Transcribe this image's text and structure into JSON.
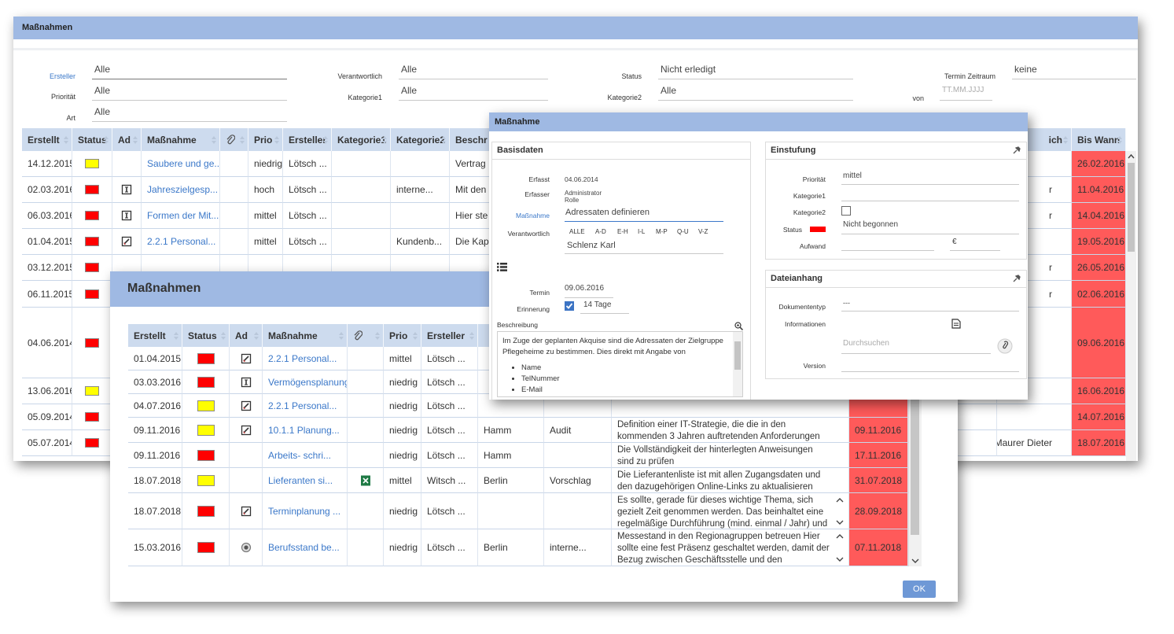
{
  "list_window": {
    "title": "Maßnahmen",
    "filters": [
      {
        "label": "Ersteller",
        "value": "Alle"
      },
      {
        "label": "Priorität",
        "value": "Alle"
      },
      {
        "label": "Art",
        "value": "Alle"
      },
      {
        "label": "Verantwortlich",
        "value": "Alle"
      },
      {
        "label": "Kategorie1",
        "value": "Alle"
      },
      {
        "label": "Status",
        "value": "Nicht erledigt"
      },
      {
        "label": "Kategorie2",
        "value": "Alle"
      },
      {
        "label": "Termin Zeitraum",
        "value": "keine"
      },
      {
        "label": "von",
        "placeholder": "TT.MM.JJJJ"
      }
    ],
    "table": {
      "columns": [
        "Erstellt",
        "Status",
        "Ad",
        "Maßnahme",
        null,
        "Prio",
        "Ersteller",
        "Kategorie1",
        "Kategorie2",
        "Beschr",
        "ich",
        "Bis Wann"
      ],
      "rows": [
        [
          "14.12.2015",
          "#ffff00",
          null,
          "Saubere und ge...",
          null,
          "niedrig",
          "Lötsch ...",
          null,
          null,
          "Vertrag",
          null,
          "26.02.2016"
        ],
        [
          "02.03.2016",
          "#ff0000",
          "info",
          "Jahreszielgesp...",
          null,
          "hoch",
          "Lötsch ...",
          null,
          "interne...",
          "Mit den",
          "r",
          "11.04.2016"
        ],
        [
          "06.03.2016",
          "#ff0000",
          "info",
          "Formen der Mit...",
          null,
          "mittel",
          "Lötsch ...",
          null,
          null,
          "Hier ste",
          "r",
          "14.04.2016"
        ],
        [
          "01.04.2015",
          "#ff0000",
          "edit",
          "2.2.1 Personal...",
          null,
          "mittel",
          "Lötsch ...",
          null,
          "Kundenb...",
          "Die Kap",
          null,
          "19.05.2016"
        ],
        [
          "03.12.2015",
          "#ff0000",
          null,
          null,
          null,
          null,
          null,
          null,
          null,
          null,
          "r",
          "26.05.2016"
        ],
        [
          "06.11.2015",
          "#ff0000",
          null,
          null,
          null,
          null,
          null,
          null,
          null,
          null,
          "r",
          "02.06.2016"
        ],
        [
          "04.06.2014",
          "#ff0000",
          null,
          null,
          null,
          null,
          null,
          null,
          null,
          null,
          null,
          "09.06.2016"
        ],
        [
          "13.06.2016",
          "#ffff00",
          null,
          null,
          null,
          null,
          null,
          null,
          null,
          null,
          null,
          "16.06.2016"
        ],
        [
          "05.09.2014",
          "#ff0000",
          null,
          null,
          null,
          null,
          null,
          null,
          null,
          null,
          null,
          "14.07.2016"
        ],
        [
          "05.07.2014",
          "#ff0000",
          null,
          null,
          null,
          null,
          null,
          null,
          null,
          null,
          "Maurer Dieter",
          "18.07.2016"
        ]
      ]
    }
  },
  "overview_window": {
    "title": "Maßnahmen",
    "table": {
      "columns": [
        "Erstellt",
        "Status",
        "Ad",
        "Maßnahme",
        null,
        "Prio",
        "Ersteller",
        null,
        null,
        null,
        null
      ],
      "rows": [
        [
          "01.04.2015",
          "#ff0000",
          "edit",
          "2.2.1 Personal...",
          null,
          "mittel",
          "Lötsch ...",
          null,
          null,
          null,
          null
        ],
        [
          "03.03.2016",
          "#ff0000",
          "info",
          "Vermögensplanung",
          null,
          "niedrig",
          "Lötsch ...",
          null,
          null,
          null,
          null
        ],
        [
          "04.07.2016",
          "#ffff00",
          "edit",
          "2.2.1 Personal...",
          null,
          "niedrig",
          "Lötsch ...",
          null,
          null,
          null,
          null
        ],
        [
          "09.11.2016",
          "#ffff00",
          "edit",
          "10.1.1 Planung...",
          null,
          "niedrig",
          "Lötsch ...",
          "Hamm",
          "Audit",
          "Definition einer IT-Strategie, die die in den kommenden 3 Jahren auftretenden Anforderungen abdeckt.",
          "09.11.2016"
        ],
        [
          "09.11.2016",
          "#ff0000",
          null,
          "Arbeits- schri...",
          null,
          "niedrig",
          "Lötsch ...",
          "Hamm",
          null,
          "Die Vollständigkeit der hinterlegten Anweisungen sind zu prüfen",
          "17.11.2016"
        ],
        [
          "18.07.2018",
          "#ffff00",
          null,
          "Lieferanten si...",
          "excel",
          "mittel",
          "Witsch ...",
          "Berlin",
          "Vorschlag",
          "Die Lieferantenliste ist mit allen Zugangsdaten und den dazugehörigen Online-Links zu aktualisieren",
          "31.07.2018"
        ],
        [
          "18.07.2018",
          "#ff0000",
          "edit",
          "Terminplanung ...",
          null,
          "niedrig",
          "Lötsch ...",
          null,
          null,
          "Es sollte, gerade für dieses wichtige Thema, sich gezielt Zeit genommen werden. Das beinhaltet eine regelmäßige Durchführung (mind. einmal / Jahr) und",
          "28.09.2018"
        ],
        [
          "15.03.2016",
          "#ff0000",
          "target",
          "Berufsstand be...",
          null,
          "niedrig",
          "Lötsch ...",
          "Berlin",
          "interne...",
          "Messestand in den Regionagruppen betreuen Hier sollte eine fest Präsenz geschaltet werden, damit der Bezug zwischen Geschäftsstelle und den",
          "07.11.2018"
        ]
      ]
    },
    "ok_button": "OK"
  },
  "detail_dialog": {
    "title": "Maßnahme",
    "basisdaten": {
      "title": "Basisdaten",
      "erfasst": {
        "label": "Erfasst",
        "value": "04.06.2014"
      },
      "erfasser": {
        "label": "Erfasser",
        "value": [
          "Administrator",
          "Rolle"
        ]
      },
      "massnahme": {
        "label": "Maßnahme",
        "value": "Adressaten definieren"
      },
      "verantwortlich": {
        "label": "Verantwortlich",
        "letters": [
          "ALLE",
          "A-D",
          "E-H",
          "I-L",
          "M-P",
          "Q-U",
          "V-Z"
        ],
        "value": "Schlenz Karl"
      },
      "termin": {
        "label": "Termin",
        "value": "09.06.2016"
      },
      "erinnerung": {
        "label": "Erinnerung",
        "checked": true,
        "value": "14 Tage"
      },
      "beschreibung": {
        "label": "Beschreibung",
        "text": "Im Zuge der geplanten Akquise sind die Adressaten der Zielgruppe Pflegeheime zu bestimmen. Dies direkt mit Angabe von",
        "items": [
          "Name",
          "TelNummer",
          "E-Mail"
        ]
      }
    },
    "einstufung": {
      "title": "Einstufung",
      "prioritaet": {
        "label": "Priorität",
        "value": "mittel"
      },
      "kategorie1": {
        "label": "Kategorie1"
      },
      "kategorie2": {
        "label": "Kategorie2",
        "checked": false
      },
      "status": {
        "label": "Status",
        "color": "#ff0000",
        "value": "Nicht begonnen"
      },
      "aufwand": {
        "label": "Aufwand",
        "currency": "€"
      }
    },
    "dateianhang": {
      "title": "Dateianhang",
      "dokumententyp": {
        "label": "Dokumententyp",
        "value": "---"
      },
      "informationen": {
        "label": "Informationen"
      },
      "durchsuchen": "Durchsuchen",
      "version": {
        "label": "Version"
      }
    }
  }
}
